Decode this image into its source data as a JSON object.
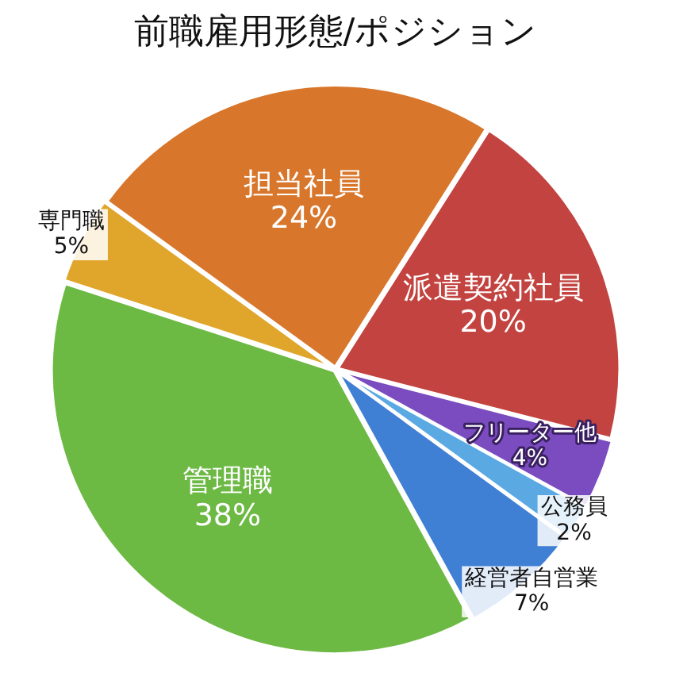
{
  "chart_data": {
    "type": "pie",
    "title": "前職雇用形態/ポジション",
    "categories": [
      "担当社員",
      "派遣契約社員",
      "フリーター他",
      "公務員",
      "経営者自営業",
      "管理職",
      "専門職"
    ],
    "values": [
      24,
      20,
      4,
      2,
      7,
      38,
      5
    ],
    "value_labels": [
      "24%",
      "20%",
      "4%",
      "2%",
      "7%",
      "38%",
      "5%"
    ],
    "colors": [
      "#d8762b",
      "#c2433f",
      "#7b4cc0",
      "#5aa9e3",
      "#3f7fd4",
      "#6cb943",
      "#e0a62c"
    ],
    "legend": false
  }
}
